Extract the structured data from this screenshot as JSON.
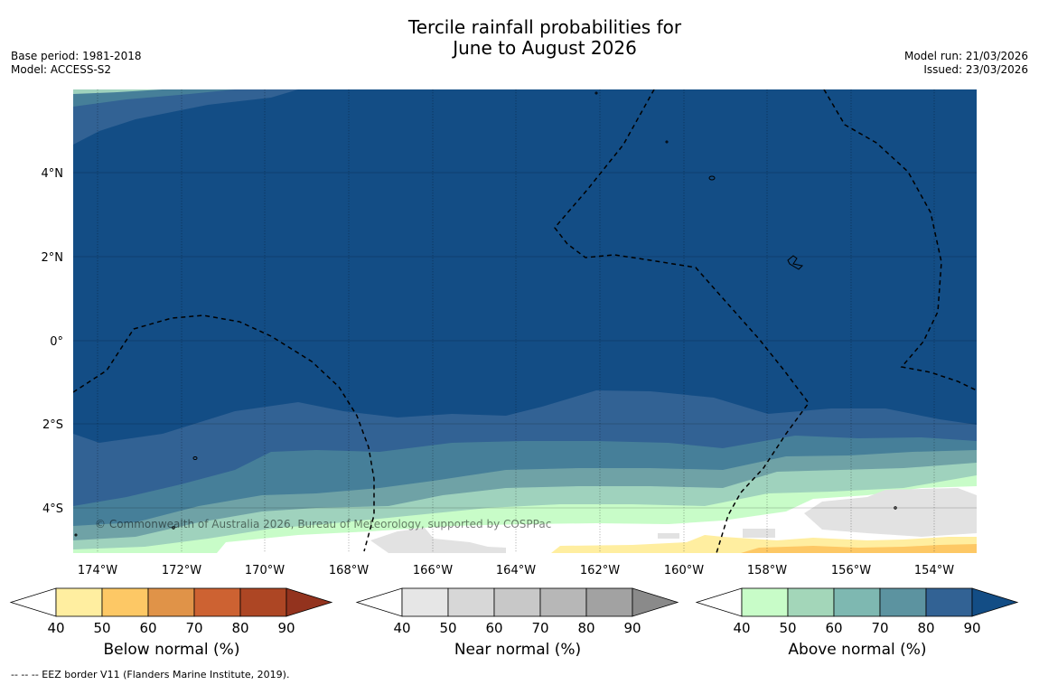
{
  "title": {
    "line1": "Tercile rainfall probabilities for",
    "line2": "June to August 2026"
  },
  "meta": {
    "base_period": "Base period: 1981-2018",
    "model": "Model: ACCESS-S2",
    "model_run": "Model run: 21/03/2026",
    "issued": "Issued: 23/03/2026"
  },
  "axes": {
    "lon_labels": [
      "174°W",
      "172°W",
      "170°W",
      "168°W",
      "166°W",
      "164°W",
      "162°W",
      "160°W",
      "158°W",
      "156°W",
      "154°W"
    ],
    "lat_labels": [
      "4°N",
      "2°N",
      "0°",
      "2°S",
      "4°S"
    ]
  },
  "copyright": "© Commonwealth of Australia 2026, Bureau of Meteorology, supported by COSPPac",
  "colorbars": [
    {
      "label": "Below normal (%)",
      "ticks": [
        "40",
        "50",
        "60",
        "70",
        "80",
        "90"
      ],
      "colors": [
        "#ffeea0",
        "#fdc865",
        "#e09348",
        "#cd6232",
        "#ad4624"
      ],
      "extend": "#93331e"
    },
    {
      "label": "Near normal (%)",
      "ticks": [
        "40",
        "50",
        "60",
        "70",
        "80",
        "90"
      ],
      "colors": [
        "#e6e6e6",
        "#d7d7d7",
        "#c8c8c8",
        "#b7b7b7",
        "#a2a2a2"
      ],
      "extend": "#8a8a8a"
    },
    {
      "label": "Above normal (%)",
      "ticks": [
        "40",
        "50",
        "60",
        "70",
        "80",
        "90"
      ],
      "colors": [
        "#c8fcc8",
        "#a3d6b9",
        "#7eb8b1",
        "#5c93a0",
        "#326294"
      ],
      "extend": "#134d85"
    }
  ],
  "legend": {
    "eez": "-- EEZ border V11 (Flanders Marine Institute, 2019)."
  },
  "colors": {
    "deep": "#134d85",
    "blue2": "#326294",
    "teal3": "#467f99",
    "teal4": "#6fa2a6",
    "green5": "#9fd2bd",
    "green6": "#c8fcc8",
    "yellow": "#ffeea0",
    "orange": "#fdc865",
    "gray": "#e2e2e2"
  }
}
